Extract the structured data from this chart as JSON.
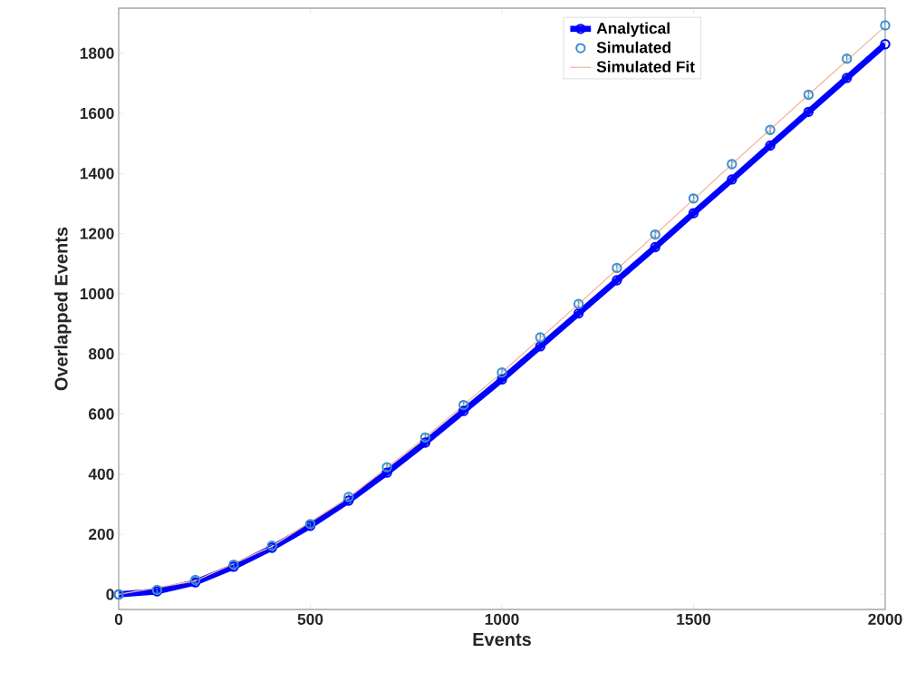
{
  "chart_data": {
    "type": "line",
    "xlabel": "Events",
    "ylabel": "Overlapped Events",
    "xlim": [
      0,
      2000
    ],
    "ylim": [
      -50,
      1950
    ],
    "xticks": [
      0,
      500,
      1000,
      1500,
      2000
    ],
    "yticks": [
      0,
      200,
      400,
      600,
      800,
      1000,
      1200,
      1400,
      1600,
      1800
    ],
    "grid": false,
    "legend": "top right",
    "series": [
      {
        "name": "Analytical",
        "color": "#0000ff",
        "marker": "circle",
        "x": [
          0,
          100,
          200,
          300,
          400,
          500,
          600,
          700,
          800,
          900,
          1000,
          1100,
          1200,
          1300,
          1400,
          1500,
          1600,
          1700,
          1800,
          1900,
          2000
        ],
        "values": [
          0,
          10,
          40,
          92,
          155,
          228,
          312,
          405,
          505,
          610,
          715,
          825,
          935,
          1045,
          1155,
          1268,
          1380,
          1493,
          1605,
          1718,
          1830
        ]
      },
      {
        "name": "Simulated",
        "type": "scatter",
        "color": "#3a8fd0",
        "marker": "circle",
        "x": [
          0,
          100,
          200,
          300,
          400,
          500,
          600,
          700,
          800,
          900,
          1000,
          1100,
          1200,
          1300,
          1400,
          1500,
          1600,
          1700,
          1800,
          1900,
          2000
        ],
        "values": [
          0,
          15,
          48,
          99,
          162,
          234,
          324,
          423,
          522,
          630,
          738,
          855,
          966,
          1086,
          1197,
          1317,
          1431,
          1545,
          1662,
          1782,
          1893
        ],
        "errors": [
          10,
          10,
          10,
          10,
          10,
          10,
          10,
          10,
          10,
          10,
          10,
          10,
          10,
          10,
          10,
          10,
          10,
          10,
          10,
          10,
          10
        ]
      },
      {
        "name": "Simulated Fit",
        "color": "#f4b9a0",
        "marker": "none",
        "x": [
          0,
          200,
          400,
          600,
          800,
          1000,
          1200,
          1400,
          1600,
          1800,
          2000
        ],
        "values": [
          0,
          45,
          160,
          322,
          522,
          738,
          966,
          1197,
          1431,
          1662,
          1890
        ]
      }
    ]
  }
}
